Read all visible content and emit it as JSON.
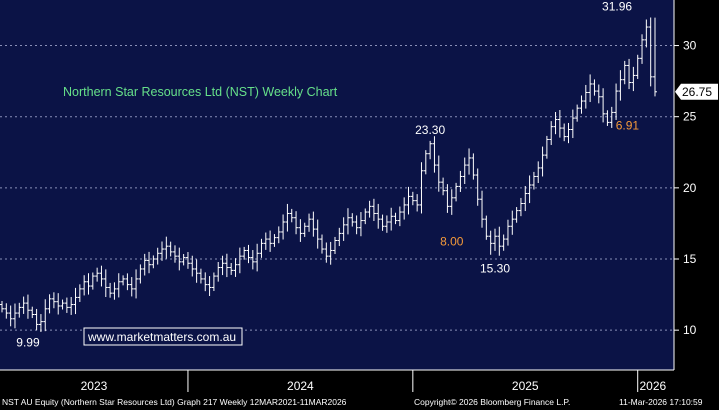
{
  "colors": {
    "plot_bg": "#0b1346",
    "bars": "#ffffff",
    "grid": "#8a90b8",
    "title": "#66e08a",
    "annotation_orange": "#f59a3a",
    "footer_bg": "#000000",
    "axis_bg": "#000000"
  },
  "chart_data": {
    "type": "ohlc",
    "title": "Northern Star Resources Ltd (NST) Weekly Chart",
    "watermark": "www.marketmatters.com.au",
    "ylim": [
      7.2,
      33.2
    ],
    "yticks": [
      10,
      15,
      20,
      25,
      30
    ],
    "ytick_labels": [
      "10",
      "15",
      "20",
      "25",
      "30"
    ],
    "x_years": [
      "2023",
      "2024",
      "2025",
      "2026"
    ],
    "last_price_label": "26.75",
    "last_price": 26.75,
    "annotations": [
      {
        "text": "9.99",
        "color": "white",
        "x_week": 6,
        "y": 9.99
      },
      {
        "text": "23.30",
        "color": "white",
        "x_week": 99,
        "y": 23.3
      },
      {
        "text": "8.00",
        "color": "orange",
        "x_week": 104,
        "y": 17.2
      },
      {
        "text": "15.30",
        "color": "white",
        "x_week": 114,
        "y": 15.3
      },
      {
        "text": "31.96",
        "color": "white",
        "x_week": 145,
        "y": 31.96
      },
      {
        "text": "6.91",
        "color": "orange",
        "x_week": 146,
        "y": 25.5
      }
    ],
    "closes": [
      11.5,
      11.2,
      10.8,
      11.2,
      11.6,
      11.9,
      11.4,
      11.1,
      10.4,
      10.6,
      11.5,
      12.2,
      12.0,
      11.7,
      11.9,
      11.6,
      11.8,
      12.3,
      12.9,
      13.4,
      13.1,
      13.8,
      14.0,
      13.6,
      13.0,
      12.6,
      12.9,
      13.4,
      13.6,
      13.2,
      12.9,
      13.6,
      14.3,
      14.9,
      14.6,
      15.0,
      15.4,
      15.7,
      15.9,
      15.5,
      15.2,
      14.8,
      15.1,
      14.7,
      14.3,
      14.0,
      13.6,
      13.2,
      13.0,
      13.8,
      14.4,
      14.7,
      14.4,
      14.2,
      14.6,
      15.2,
      15.6,
      15.1,
      14.8,
      15.4,
      16.1,
      16.4,
      16.1,
      16.5,
      16.9,
      17.6,
      18.2,
      17.9,
      17.2,
      16.8,
      17.3,
      17.8,
      17.1,
      16.4,
      15.7,
      15.2,
      15.6,
      16.3,
      16.8,
      17.4,
      17.9,
      17.6,
      17.2,
      17.7,
      18.3,
      18.7,
      18.2,
      17.8,
      17.3,
      17.6,
      18.0,
      17.7,
      18.3,
      18.8,
      19.4,
      19.1,
      18.8,
      21.2,
      22.4,
      23.1,
      21.6,
      20.4,
      19.8,
      18.7,
      19.3,
      20.1,
      20.8,
      21.6,
      22.1,
      20.9,
      19.2,
      17.8,
      16.6,
      16.1,
      16.6,
      15.9,
      16.4,
      17.3,
      17.8,
      18.4,
      18.9,
      19.6,
      20.2,
      20.8,
      21.4,
      22.3,
      23.4,
      24.3,
      24.8,
      24.2,
      23.6,
      24.1,
      24.9,
      25.6,
      26.1,
      26.7,
      27.3,
      26.8,
      26.4,
      25.2,
      24.6,
      25.3,
      26.8,
      27.6,
      28.6,
      27.4,
      27.9,
      29.1,
      30.4,
      31.3,
      27.8,
      26.75
    ]
  },
  "footer": {
    "left": "NST AU Equity (Northern Star Resources Ltd) Graph 217 Weekly 12MAR2021-11MAR2026",
    "center": "Copyright© 2026 Bloomberg Finance L.P.",
    "right": "11-Mar-2026 17:10:59"
  }
}
